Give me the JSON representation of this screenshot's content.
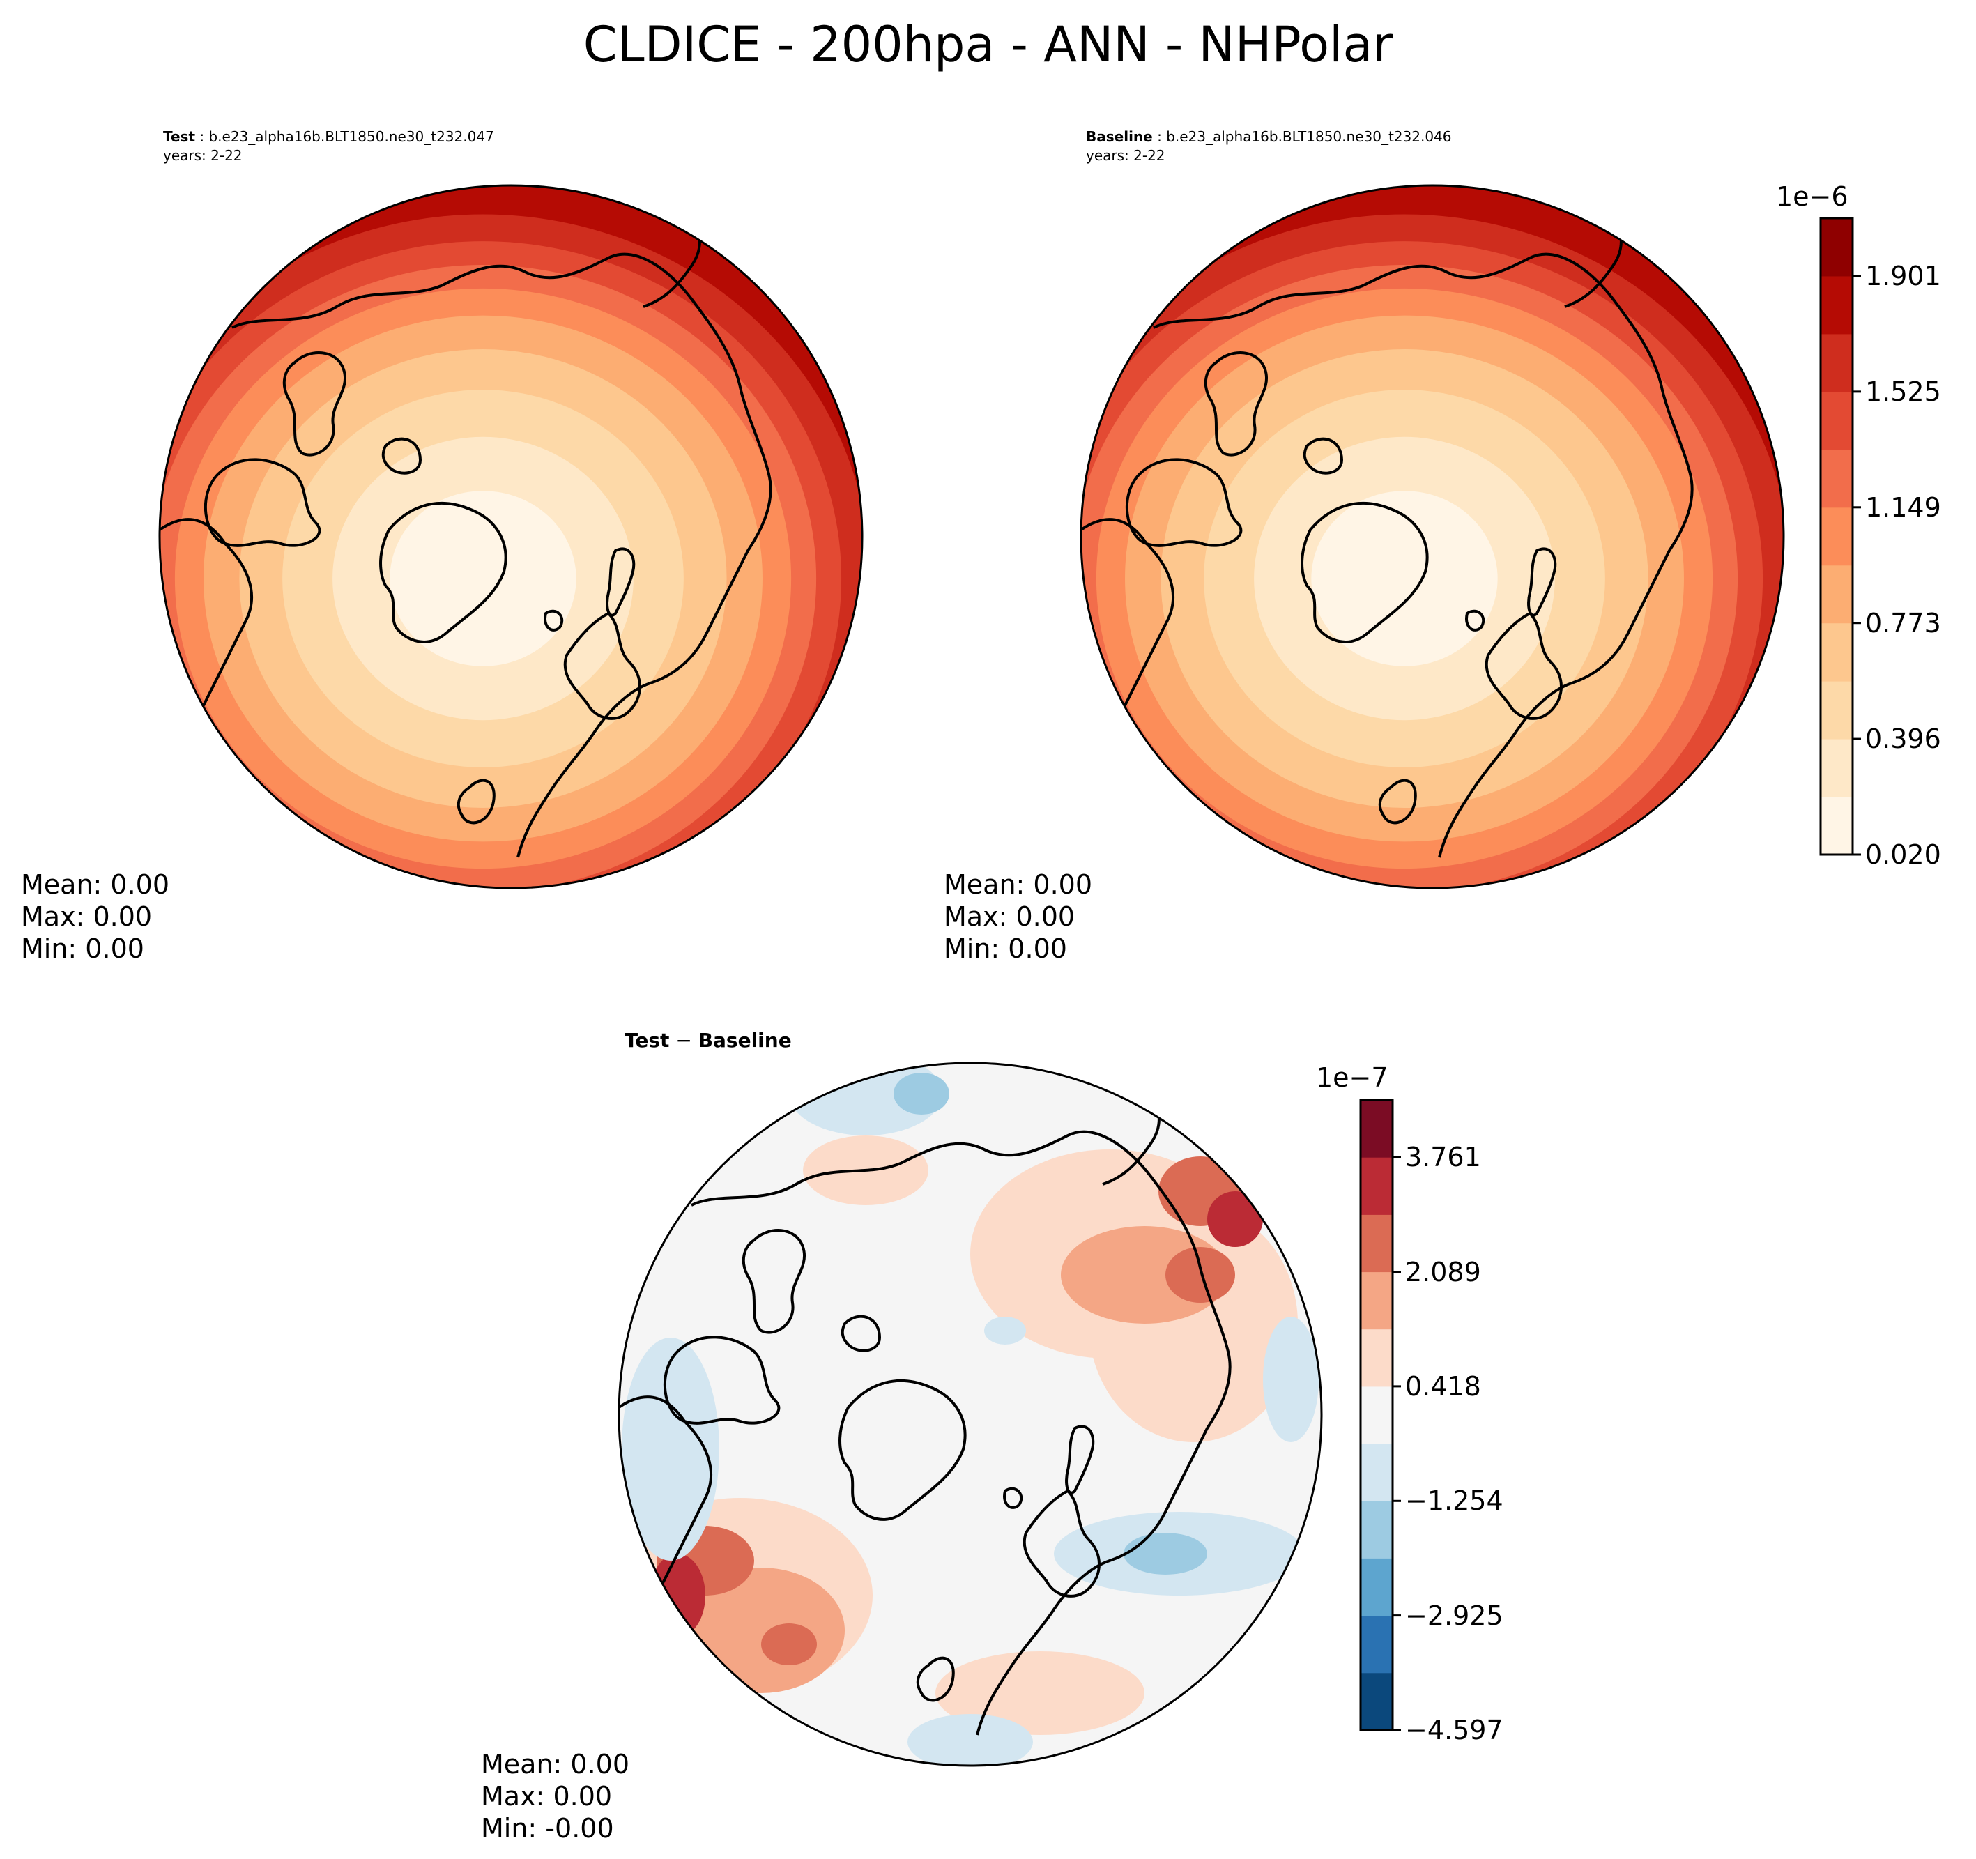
{
  "figure": {
    "title": "CLDICE - 200hpa - ANN - NHPolar"
  },
  "panels": {
    "test": {
      "title_bold": "Test",
      "title_rest": " : b.e23_alpha16b.BLT1850.ne30_t232.047",
      "years": "years: 2-22",
      "stats": {
        "mean": "Mean:  0.00",
        "max": "Max:  0.00",
        "min": "Min:  0.00"
      }
    },
    "baseline": {
      "title_bold": "Baseline",
      "title_rest": " : b.e23_alpha16b.BLT1850.ne30_t232.046",
      "years": "years: 2-22",
      "stats": {
        "mean": "Mean:  0.00",
        "max": "Max:  0.00",
        "min": "Min:  0.00"
      }
    },
    "diff": {
      "title_bold": "Test",
      "title_mid": " − ",
      "title_bold2": "Baseline",
      "stats": {
        "mean": "Mean:  0.00",
        "max": "Max:  0.00",
        "min": "Min: -0.00"
      }
    }
  },
  "chart_data": [
    {
      "type": "heatmap",
      "name": "test",
      "projection": "north-polar-stereographic",
      "colorbar_ref": "cb1",
      "field_description": "cloud ice at 200 hPa, annual mean; values increase toward the southern edge of the polar domain",
      "center_level": 0.02,
      "edge_level": 1.99
    },
    {
      "type": "heatmap",
      "name": "baseline",
      "projection": "north-polar-stereographic",
      "colorbar_ref": "cb1",
      "center_level": 0.02,
      "edge_level": 1.99
    },
    {
      "type": "heatmap",
      "name": "test-baseline",
      "projection": "north-polar-stereographic",
      "colorbar_ref": "cb2"
    }
  ],
  "colorbars": {
    "cb1": {
      "exponent": "1e−6",
      "vmin": 0.02,
      "vmax": 2.089,
      "boundaries": [
        0.02,
        0.208,
        0.396,
        0.584,
        0.773,
        0.961,
        1.149,
        1.337,
        1.525,
        1.713,
        1.901,
        2.089
      ],
      "ticks": [
        0.02,
        0.396,
        0.773,
        1.149,
        1.525,
        1.901
      ],
      "tick_labels": [
        "0.020",
        "0.396",
        "0.773",
        "1.149",
        "1.525",
        "1.901"
      ],
      "colors": [
        "#fff5e6",
        "#fee8c8",
        "#fdd9a8",
        "#fdc78e",
        "#fcad72",
        "#fc8d59",
        "#f26d4b",
        "#e34a33",
        "#cf2d1e",
        "#b50b04",
        "#8f0000"
      ]
    },
    "cb2": {
      "exponent": "1e−7",
      "vmin": -4.597,
      "vmax": 4.597,
      "boundaries": [
        -4.597,
        -3.761,
        -2.925,
        -2.089,
        -1.254,
        -0.418,
        0.418,
        1.254,
        2.089,
        2.925,
        3.761,
        4.597
      ],
      "ticks": [
        -4.597,
        -2.925,
        -1.254,
        0.418,
        2.089,
        3.761
      ],
      "tick_labels": [
        "−4.597",
        "−2.925",
        "−1.254",
        "0.418",
        "2.089",
        "3.761"
      ],
      "colors": [
        "#0b487c",
        "#2a72b2",
        "#5da5cf",
        "#9dcbe2",
        "#d3e6f1",
        "#f5f5f5",
        "#fcdbc9",
        "#f4a685",
        "#db6b54",
        "#bb2b35",
        "#7b0c24"
      ]
    }
  }
}
